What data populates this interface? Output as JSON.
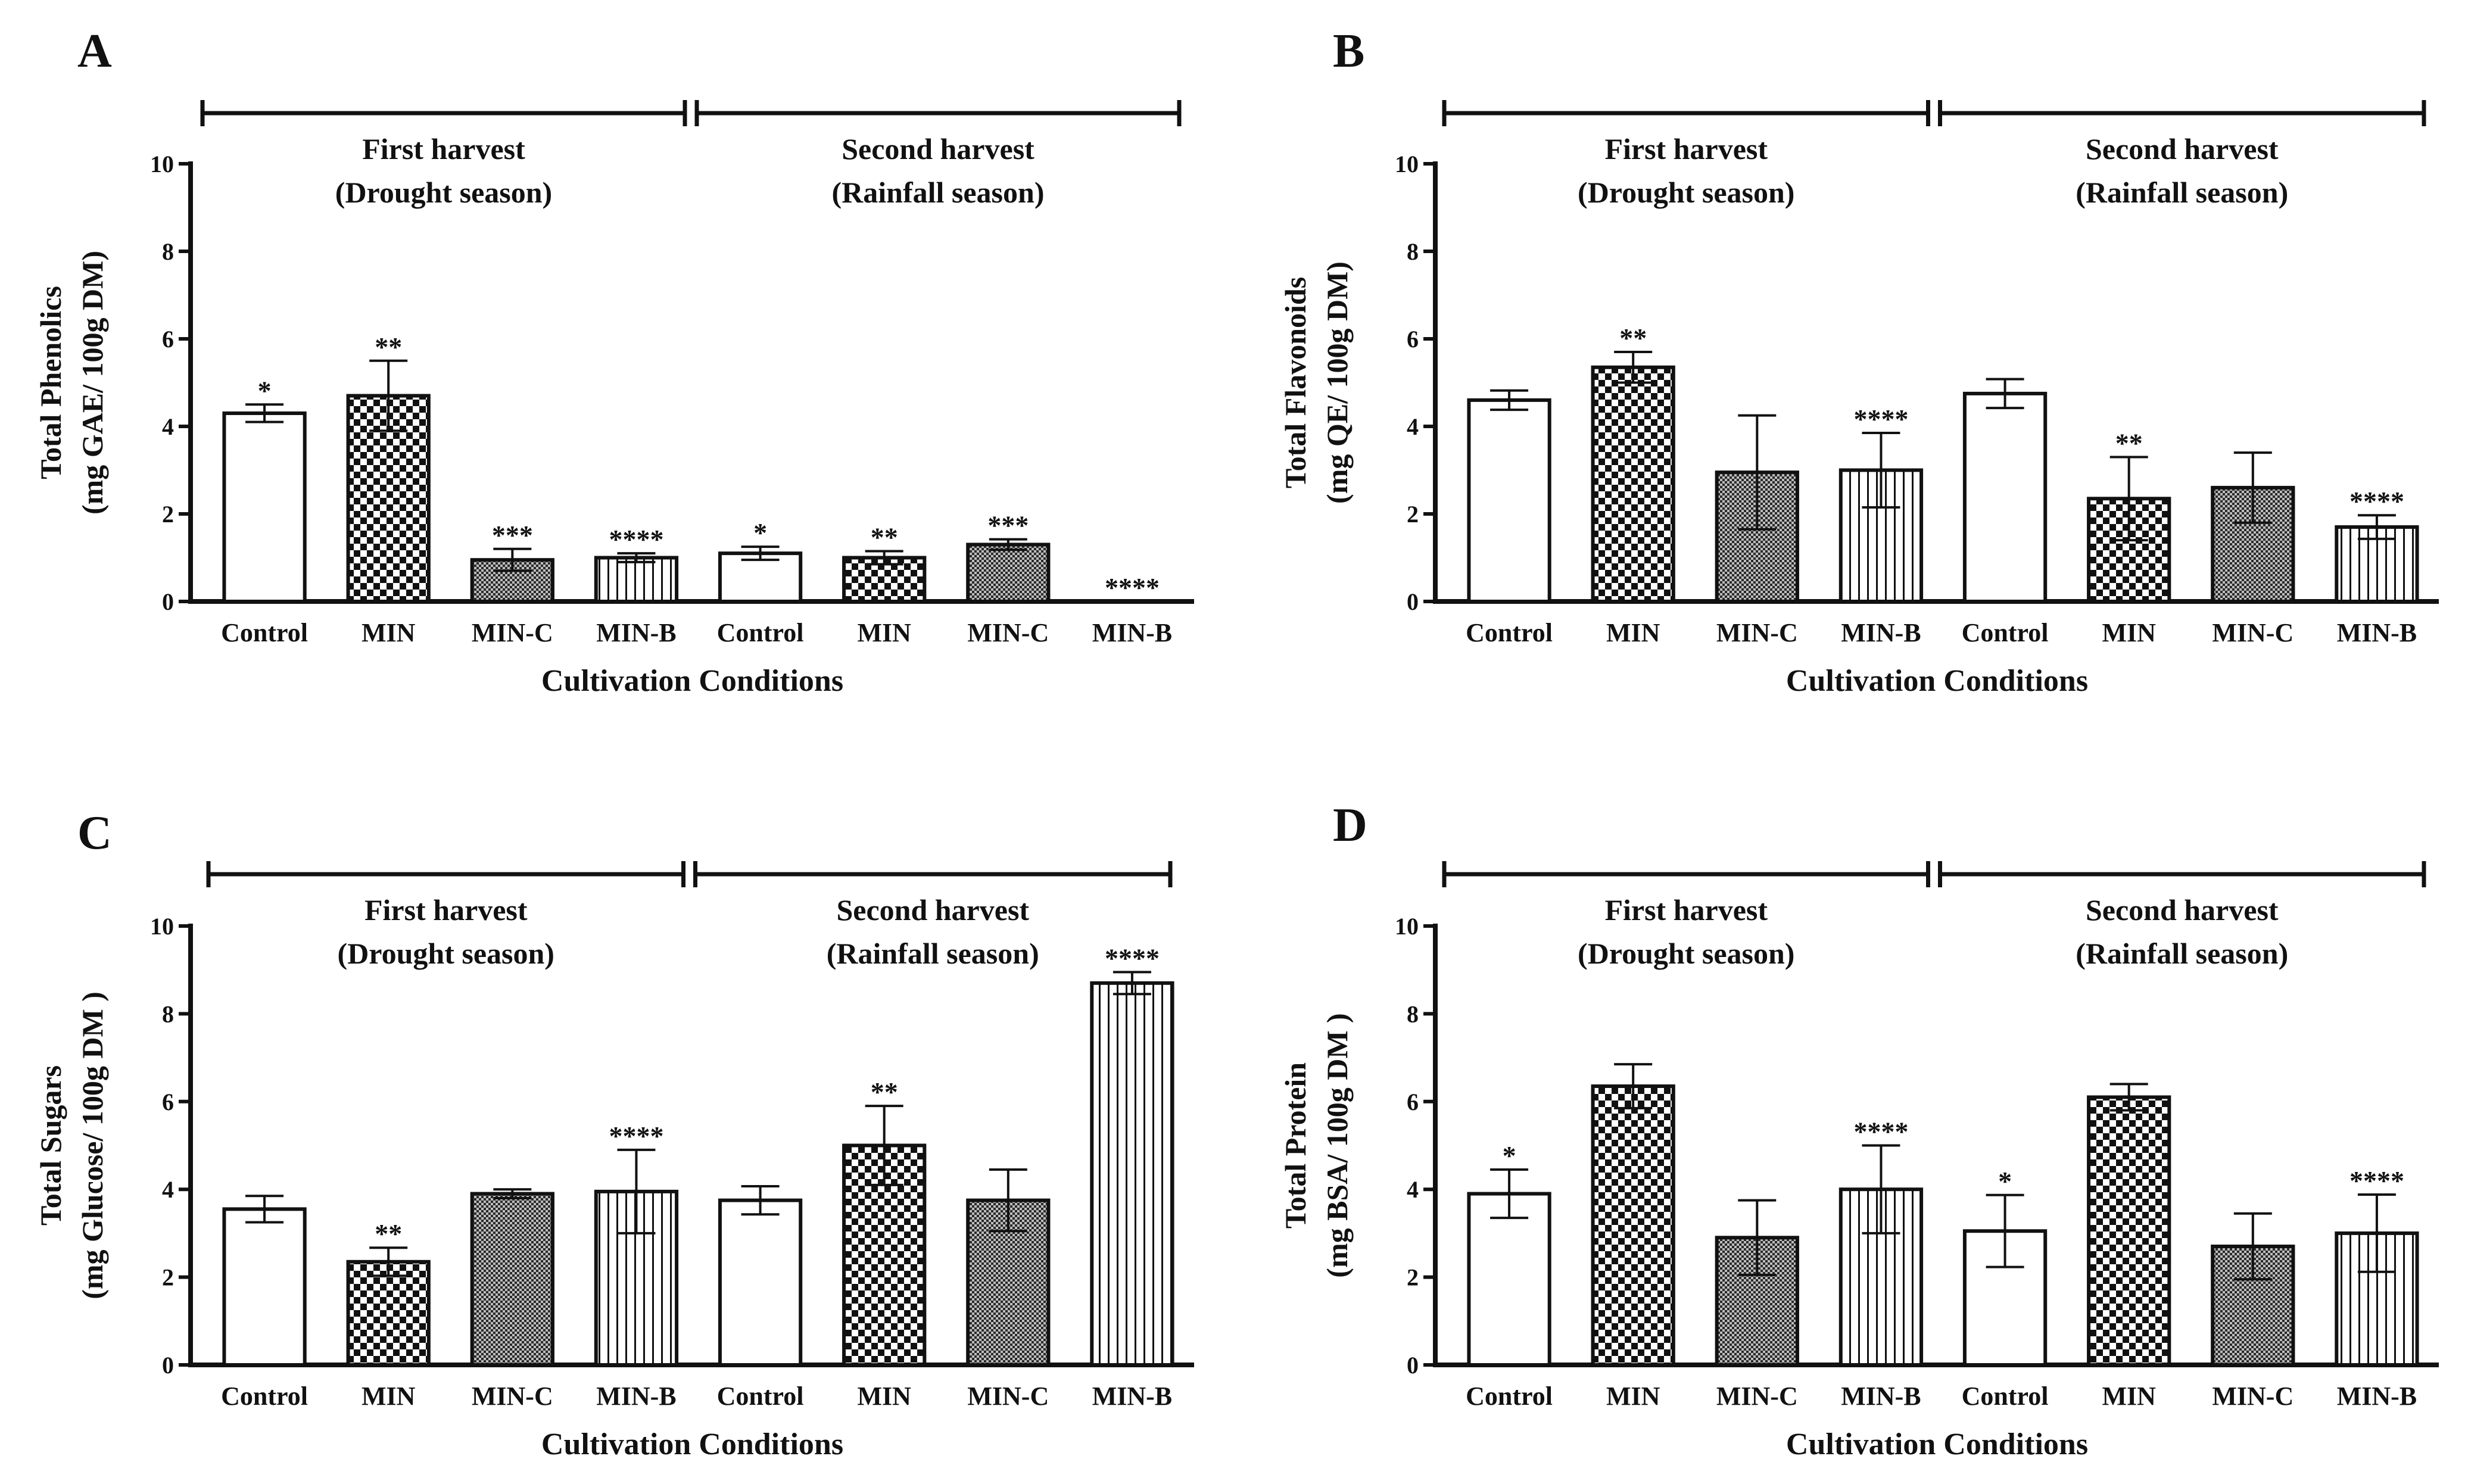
{
  "figure": {
    "x_axis_label": "Cultivation Conditions",
    "groups": [
      {
        "title": "First harvest",
        "subtitle": "(Drought season)"
      },
      {
        "title": "Second harvest",
        "subtitle": "(Rainfall season)"
      }
    ],
    "colors": {
      "ink": "#111111",
      "dark_fill": "#2a2a2a",
      "white": "#ffffff"
    }
  },
  "chart_data": [
    {
      "panel": "A",
      "type": "bar",
      "ylabel_line1": "Total Phenolics",
      "ylabel_line2": "(mg GAE/ 100g DM)",
      "xlabel": "Cultivation Conditions",
      "ylim": [
        0,
        10
      ],
      "yticks": [
        0,
        2,
        4,
        6,
        8,
        10
      ],
      "categories": [
        "Control",
        "MIN",
        "MIN-C",
        "MIN-B",
        "Control",
        "MIN",
        "MIN-C",
        "MIN-B"
      ],
      "patterns": [
        "plain",
        "checker",
        "fine",
        "stripe",
        "plain",
        "checker",
        "fine",
        "stripe"
      ],
      "values": [
        4.3,
        4.7,
        0.95,
        1.0,
        1.1,
        1.0,
        1.3,
        0.0
      ],
      "errors": [
        0.2,
        0.8,
        0.25,
        0.1,
        0.15,
        0.15,
        0.12,
        0.0
      ],
      "significance": [
        "*",
        "**",
        "***",
        "****",
        "*",
        "**",
        "***",
        "****"
      ]
    },
    {
      "panel": "B",
      "type": "bar",
      "ylabel_line1": "Total Flavonoids",
      "ylabel_line2": "(mg QE/ 100g DM)",
      "xlabel": "Cultivation Conditions",
      "ylim": [
        0,
        10
      ],
      "yticks": [
        0,
        2,
        4,
        6,
        8,
        10
      ],
      "categories": [
        "Control",
        "MIN",
        "MIN-C",
        "MIN-B",
        "Control",
        "MIN",
        "MIN-C",
        "MIN-B"
      ],
      "patterns": [
        "plain",
        "checker",
        "fine",
        "stripe",
        "plain",
        "checker",
        "fine",
        "stripe"
      ],
      "values": [
        4.6,
        5.35,
        2.95,
        3.0,
        4.75,
        2.35,
        2.6,
        1.7
      ],
      "errors": [
        0.22,
        0.35,
        1.3,
        0.85,
        0.33,
        0.95,
        0.8,
        0.27
      ],
      "significance": [
        "",
        "**",
        "",
        "****",
        "",
        "**",
        "",
        "****"
      ]
    },
    {
      "panel": "C",
      "type": "bar",
      "ylabel_line1": "Total Sugars",
      "ylabel_line2": "(mg Glucose/ 100g DM )",
      "xlabel": "Cultivation Conditions",
      "ylim": [
        0,
        10
      ],
      "yticks": [
        0,
        2,
        4,
        6,
        8,
        10
      ],
      "categories": [
        "Control",
        "MIN",
        "MIN-C",
        "MIN-B",
        "Control",
        "MIN",
        "MIN-C",
        "MIN-B"
      ],
      "patterns": [
        "plain",
        "checker",
        "fine",
        "stripe",
        "plain",
        "checker",
        "fine",
        "stripe"
      ],
      "values": [
        3.55,
        2.35,
        3.9,
        3.95,
        3.75,
        5.0,
        3.75,
        8.7
      ],
      "errors": [
        0.3,
        0.32,
        0.1,
        0.95,
        0.32,
        0.9,
        0.7,
        0.25
      ],
      "significance": [
        "",
        "**",
        "",
        "****",
        "",
        "**",
        "",
        "****"
      ]
    },
    {
      "panel": "D",
      "type": "bar",
      "ylabel_line1": "Total Protein",
      "ylabel_line2": "(mg BSA/ 100g DM )",
      "xlabel": "Cultivation Conditions",
      "ylim": [
        0,
        10
      ],
      "yticks": [
        0,
        2,
        4,
        6,
        8,
        10
      ],
      "categories": [
        "Control",
        "MIN",
        "MIN-C",
        "MIN-B",
        "Control",
        "MIN",
        "MIN-C",
        "MIN-B"
      ],
      "patterns": [
        "plain",
        "checker",
        "fine",
        "stripe",
        "plain",
        "checker",
        "fine",
        "stripe"
      ],
      "values": [
        3.9,
        6.35,
        2.9,
        4.0,
        3.05,
        6.1,
        2.7,
        3.0
      ],
      "errors": [
        0.55,
        0.5,
        0.85,
        1.0,
        0.82,
        0.3,
        0.75,
        0.88
      ],
      "significance": [
        "*",
        "",
        "",
        "****",
        "*",
        "",
        "",
        "****"
      ]
    }
  ]
}
